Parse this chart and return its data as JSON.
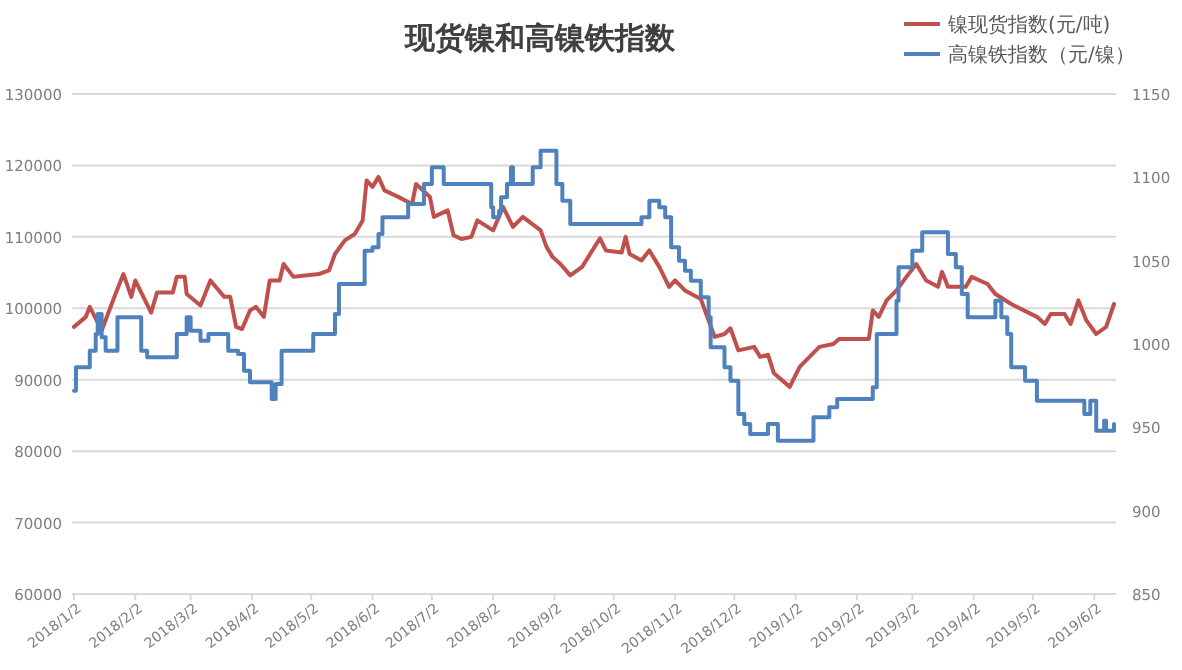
{
  "chart_data": {
    "type": "line",
    "title": "现货镍和高镍铁指数",
    "xlim": [
      "2018-01-01",
      "2019-06-13"
    ],
    "xticks": [
      {
        "value": "2018-01-02",
        "label": "2018/1/2"
      },
      {
        "value": "2018-02-02",
        "label": "2018/2/2"
      },
      {
        "value": "2018-03-02",
        "label": "2018/3/2"
      },
      {
        "value": "2018-04-02",
        "label": "2018/4/2"
      },
      {
        "value": "2018-05-02",
        "label": "2018/5/2"
      },
      {
        "value": "2018-06-02",
        "label": "2018/6/2"
      },
      {
        "value": "2018-07-02",
        "label": "2018/7/2"
      },
      {
        "value": "2018-08-02",
        "label": "2018/8/2"
      },
      {
        "value": "2018-09-02",
        "label": "2018/9/2"
      },
      {
        "value": "2018-10-02",
        "label": "2018/10/2"
      },
      {
        "value": "2018-11-02",
        "label": "2018/11/2"
      },
      {
        "value": "2018-12-02",
        "label": "2018/12/2"
      },
      {
        "value": "2019-01-02",
        "label": "2019/1/2"
      },
      {
        "value": "2019-02-02",
        "label": "2019/2/2"
      },
      {
        "value": "2019-03-02",
        "label": "2019/3/2"
      },
      {
        "value": "2019-04-02",
        "label": "2019/4/2"
      },
      {
        "value": "2019-05-02",
        "label": "2019/5/2"
      },
      {
        "value": "2019-06-02",
        "label": "2019/6/2"
      }
    ],
    "ylim": [
      60000,
      130000
    ],
    "yticks": [
      60000,
      70000,
      80000,
      90000,
      100000,
      110000,
      120000,
      130000
    ],
    "y2lim": [
      850,
      1150
    ],
    "y2ticks": [
      850,
      900,
      950,
      1000,
      1050,
      1100,
      1150
    ],
    "grid": "y",
    "legend": "top right",
    "marker": "none",
    "series": [
      {
        "name": "镍现货指数(元/吨)",
        "color": "#c0504d",
        "type": "line",
        "x": [
          "2018-01-02",
          "2018-01-08",
          "2018-01-10",
          "2018-01-16",
          "2018-01-23",
          "2018-01-27",
          "2018-01-31",
          "2018-02-02",
          "2018-02-10",
          "2018-02-13",
          "2018-02-21",
          "2018-02-23",
          "2018-02-27",
          "2018-02-28",
          "2018-03-07",
          "2018-03-12",
          "2018-03-19",
          "2018-03-22",
          "2018-03-25",
          "2018-03-28",
          "2018-04-01",
          "2018-04-04",
          "2018-04-08",
          "2018-04-11",
          "2018-04-16",
          "2018-04-18",
          "2018-04-23",
          "2018-05-06",
          "2018-05-11",
          "2018-05-14",
          "2018-05-19",
          "2018-05-24",
          "2018-05-28",
          "2018-05-30",
          "2018-06-02",
          "2018-06-05",
          "2018-06-08",
          "2018-06-15",
          "2018-06-22",
          "2018-06-24",
          "2018-07-01",
          "2018-07-03",
          "2018-07-10",
          "2018-07-13",
          "2018-07-17",
          "2018-07-22",
          "2018-07-25",
          "2018-08-02",
          "2018-08-07",
          "2018-08-12",
          "2018-08-17",
          "2018-08-26",
          "2018-08-29",
          "2018-09-01",
          "2018-09-05",
          "2018-09-10",
          "2018-09-16",
          "2018-09-25",
          "2018-09-28",
          "2018-10-06",
          "2018-10-08",
          "2018-10-10",
          "2018-10-16",
          "2018-10-20",
          "2018-10-25",
          "2018-10-30",
          "2018-11-02",
          "2018-11-07",
          "2018-11-15",
          "2018-11-22",
          "2018-11-27",
          "2018-11-30",
          "2018-12-04",
          "2018-12-12",
          "2018-12-15",
          "2018-12-19",
          "2018-12-22",
          "2018-12-30",
          "2019-01-04",
          "2019-01-14",
          "2019-01-21",
          "2019-01-24",
          "2019-02-08",
          "2019-02-10",
          "2019-02-13",
          "2019-02-17",
          "2019-02-22",
          "2019-02-27",
          "2019-03-04",
          "2019-03-09",
          "2019-03-15",
          "2019-03-17",
          "2019-03-20",
          "2019-03-29",
          "2019-04-01",
          "2019-04-09",
          "2019-04-13",
          "2019-04-21",
          "2019-05-04",
          "2019-05-08",
          "2019-05-11",
          "2019-05-18",
          "2019-05-21",
          "2019-05-25",
          "2019-05-29",
          "2019-06-03",
          "2019-06-08",
          "2019-06-12"
        ],
        "values": [
          97400,
          98800,
          100200,
          96900,
          102000,
          104800,
          101600,
          103900,
          99400,
          102200,
          102200,
          104400,
          104400,
          102000,
          100400,
          103900,
          101600,
          101600,
          97400,
          97100,
          99700,
          100200,
          98800,
          103900,
          103900,
          106200,
          104400,
          104800,
          105300,
          107600,
          109500,
          110400,
          112300,
          117900,
          117000,
          118400,
          116500,
          115600,
          114600,
          117400,
          115600,
          112800,
          113700,
          110200,
          109700,
          110000,
          112300,
          110900,
          114200,
          111400,
          112800,
          110900,
          108600,
          107200,
          106200,
          104600,
          105800,
          109800,
          108100,
          107800,
          110000,
          107600,
          106700,
          108100,
          105800,
          103000,
          103900,
          102500,
          101300,
          96000,
          96400,
          97200,
          94100,
          94600,
          93200,
          93500,
          90900,
          89000,
          91800,
          94600,
          95000,
          95700,
          95700,
          99700,
          98800,
          101100,
          102500,
          104400,
          106200,
          103900,
          103000,
          105100,
          103000,
          103000,
          104400,
          103400,
          102000,
          100600,
          98800,
          97800,
          99200,
          99200,
          97800,
          101100,
          98300,
          96400,
          97400,
          100600
        ]
      },
      {
        "name": "高镍铁指数（元/镍）",
        "color": "#4f81bd",
        "type": "step",
        "axis": "y2",
        "x": [
          "2018-01-02",
          "2018-01-03",
          "2018-01-10",
          "2018-01-13",
          "2018-01-14",
          "2018-01-16",
          "2018-01-18",
          "2018-01-24",
          "2018-02-05",
          "2018-02-08",
          "2018-02-23",
          "2018-02-28",
          "2018-03-02",
          "2018-03-07",
          "2018-03-11",
          "2018-03-21",
          "2018-03-26",
          "2018-03-29",
          "2018-04-01",
          "2018-04-12",
          "2018-04-14",
          "2018-04-17",
          "2018-05-03",
          "2018-05-14",
          "2018-05-16",
          "2018-05-29",
          "2018-06-02",
          "2018-06-05",
          "2018-06-07",
          "2018-06-20",
          "2018-06-28",
          "2018-07-02",
          "2018-07-08",
          "2018-08-01",
          "2018-08-02",
          "2018-08-05",
          "2018-08-06",
          "2018-08-09",
          "2018-08-11",
          "2018-08-12",
          "2018-08-22",
          "2018-08-26",
          "2018-09-03",
          "2018-09-06",
          "2018-09-10",
          "2018-10-16",
          "2018-10-20",
          "2018-10-25",
          "2018-10-28",
          "2018-10-31",
          "2018-11-04",
          "2018-11-07",
          "2018-11-10",
          "2018-11-15",
          "2018-11-19",
          "2018-11-20",
          "2018-11-27",
          "2018-11-30",
          "2018-12-04",
          "2018-12-07",
          "2018-12-10",
          "2018-12-19",
          "2018-12-24",
          "2019-01-11",
          "2019-01-19",
          "2019-01-23",
          "2019-02-10",
          "2019-02-12",
          "2019-02-22",
          "2019-02-23",
          "2019-03-02",
          "2019-03-07",
          "2019-03-20",
          "2019-03-24",
          "2019-03-27",
          "2019-03-30",
          "2019-04-13",
          "2019-04-16",
          "2019-04-19",
          "2019-04-21",
          "2019-04-28",
          "2019-05-04",
          "2019-05-28",
          "2019-05-31",
          "2019-06-03",
          "2019-06-07",
          "2019-06-08",
          "2019-06-12"
        ],
        "values": [
          972,
          986,
          996,
          1006,
          1018,
          1004,
          996,
          1016,
          996,
          992,
          1006,
          1016,
          1008,
          1002,
          1006,
          996,
          994,
          984,
          977,
          967,
          976,
          996,
          1006,
          1018,
          1036,
          1056,
          1058,
          1066,
          1076,
          1084,
          1096,
          1106,
          1096,
          1082,
          1076,
          1080,
          1088,
          1096,
          1106,
          1096,
          1106,
          1116,
          1096,
          1086,
          1072,
          1076,
          1086,
          1082,
          1076,
          1058,
          1050,
          1044,
          1038,
          1028,
          1016,
          998,
          986,
          978,
          958,
          952,
          946,
          952,
          942,
          956,
          962,
          967,
          974,
          1006,
          1026,
          1046,
          1056,
          1067,
          1054,
          1046,
          1030,
          1016,
          1026,
          1016,
          1006,
          986,
          978,
          966,
          958,
          966,
          948,
          954,
          948,
          952
        ]
      }
    ]
  }
}
